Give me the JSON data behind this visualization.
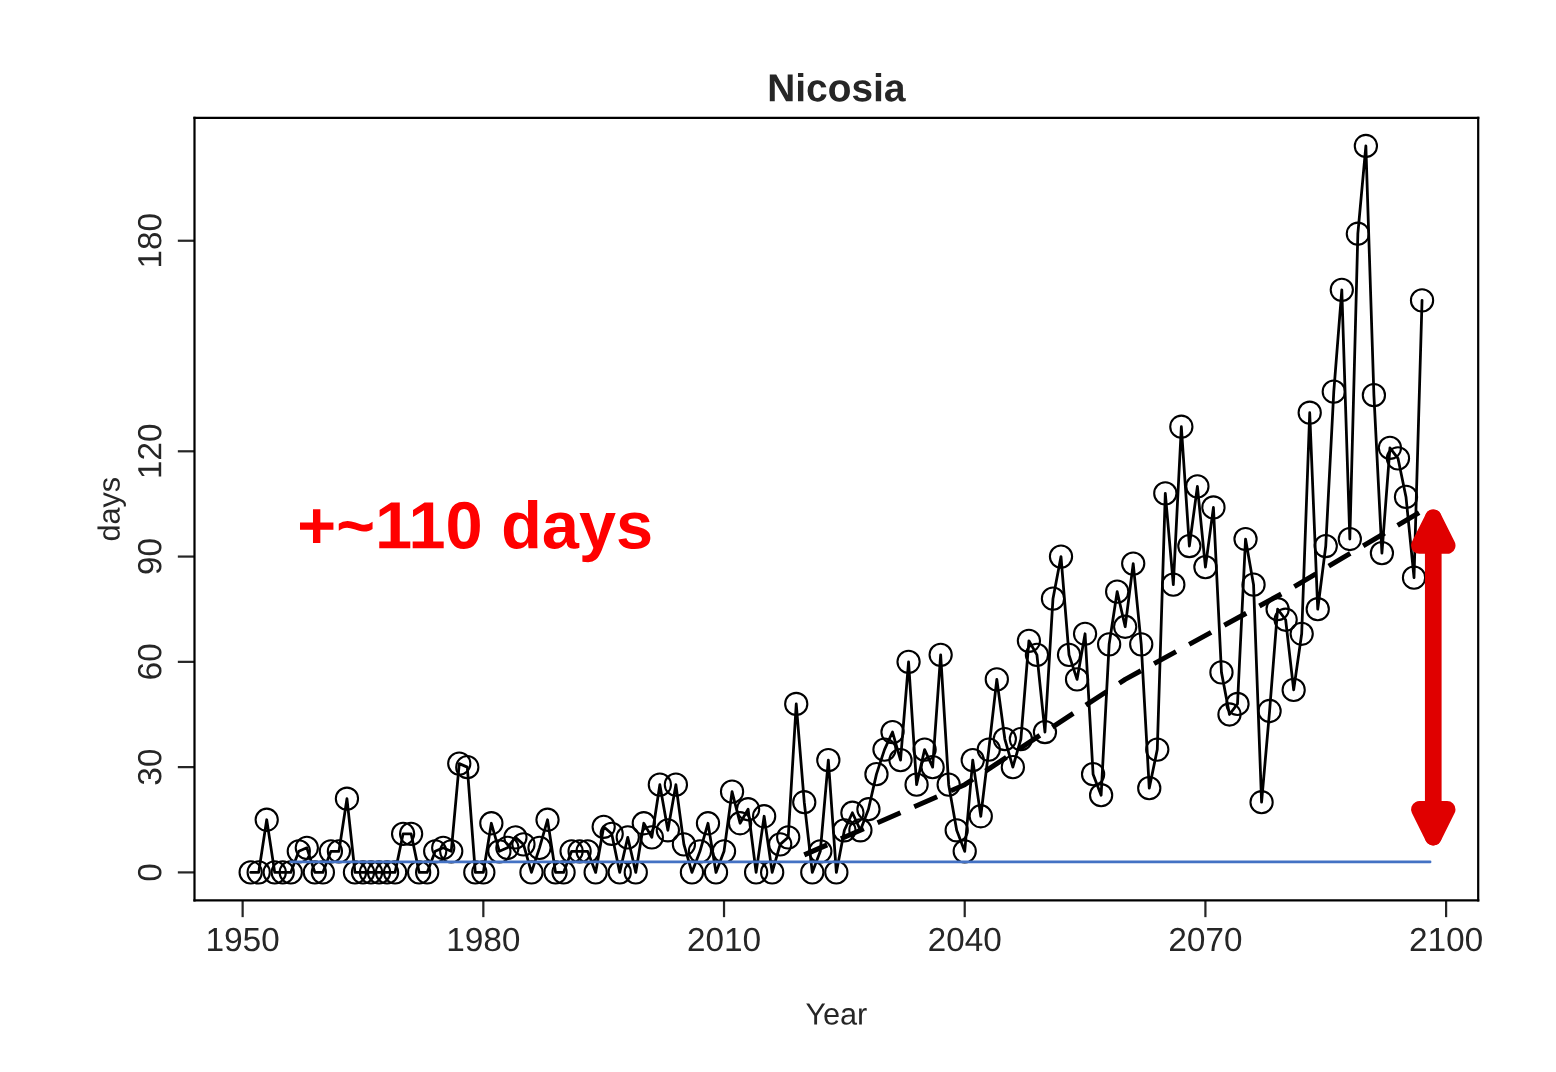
{
  "chart_data": {
    "type": "line",
    "title": "Nicosia",
    "xlabel": "Year",
    "ylabel": "days",
    "xlim": [
      1944,
      2104
    ],
    "xticks": [
      1950,
      1980,
      2010,
      2040,
      2070,
      2100
    ],
    "ylim": [
      -8,
      215
    ],
    "yticks": [
      0,
      30,
      60,
      90,
      120,
      180
    ],
    "grid": false,
    "legend": false,
    "annotations": [
      "+~110 days"
    ],
    "series": [
      {
        "color": "#000000",
        "marker": "circle",
        "line_style": "solid",
        "x": [
          1951,
          1952,
          1953,
          1954,
          1955,
          1956,
          1957,
          1958,
          1959,
          1960,
          1961,
          1962,
          1963,
          1964,
          1965,
          1966,
          1967,
          1968,
          1969,
          1970,
          1971,
          1972,
          1973,
          1974,
          1975,
          1976,
          1977,
          1978,
          1979,
          1980,
          1981,
          1982,
          1983,
          1984,
          1985,
          1986,
          1987,
          1988,
          1989,
          1990,
          1991,
          1992,
          1993,
          1994,
          1995,
          1996,
          1997,
          1998,
          1999,
          2000,
          2001,
          2002,
          2003,
          2004,
          2005,
          2006,
          2007,
          2008,
          2009,
          2010,
          2011,
          2012,
          2013,
          2014,
          2015,
          2016,
          2017,
          2018,
          2019,
          2020,
          2021,
          2022,
          2023,
          2024,
          2025,
          2026,
          2027,
          2028,
          2029,
          2030,
          2031,
          2032,
          2033,
          2034,
          2035,
          2036,
          2037,
          2038,
          2039,
          2040,
          2041,
          2042,
          2043,
          2044,
          2045,
          2046,
          2047,
          2048,
          2049,
          2050,
          2051,
          2052,
          2053,
          2054,
          2055,
          2056,
          2057,
          2058,
          2059,
          2060,
          2061,
          2062,
          2063,
          2064,
          2065,
          2066,
          2067,
          2068,
          2069,
          2070,
          2071,
          2072,
          2073,
          2074,
          2075,
          2076,
          2077,
          2078,
          2079,
          2080,
          2081,
          2082,
          2083,
          2084,
          2085,
          2086,
          2087,
          2088,
          2089,
          2090,
          2091,
          2092,
          2093,
          2094,
          2095,
          2096,
          2097
        ],
        "values": [
          0,
          0,
          15,
          0,
          0,
          0,
          6,
          7,
          0,
          0,
          6,
          6,
          21,
          0,
          0,
          0,
          0,
          0,
          0,
          11,
          11,
          0,
          0,
          6,
          7,
          6,
          31,
          30,
          0,
          0,
          14,
          6,
          7,
          10,
          8,
          0,
          7,
          15,
          0,
          0,
          6,
          6,
          6,
          0,
          13,
          11,
          0,
          10,
          0,
          14,
          10,
          25,
          12,
          25,
          8,
          0,
          6,
          14,
          0,
          6,
          23,
          14,
          18,
          0,
          16,
          0,
          8,
          10,
          48,
          20,
          0,
          6,
          32,
          0,
          12,
          17,
          12,
          18,
          28,
          35,
          40,
          32,
          60,
          25,
          35,
          30,
          62,
          25,
          12,
          6,
          32,
          16,
          35,
          55,
          38,
          30,
          38,
          66,
          62,
          40,
          78,
          90,
          62,
          55,
          68,
          28,
          22,
          65,
          80,
          70,
          88,
          65,
          24,
          35,
          108,
          82,
          127,
          93,
          110,
          87,
          104,
          57,
          45,
          48,
          95,
          82,
          20,
          46,
          75,
          72,
          52,
          68,
          131,
          75,
          93,
          137,
          166,
          95,
          182,
          207,
          136,
          91,
          121,
          118,
          107,
          84,
          163
        ]
      },
      {
        "color": "#000000",
        "marker": "none",
        "line_style": "dashed",
        "x": [
          2020,
          2040,
          2060,
          2080,
          2097
        ],
        "values": [
          5,
          25,
          55,
          80,
          103
        ]
      },
      {
        "color": "#4472c4",
        "marker": "none",
        "line_style": "solid",
        "x": [
          1956,
          2098
        ],
        "values": [
          3,
          3
        ]
      }
    ]
  }
}
